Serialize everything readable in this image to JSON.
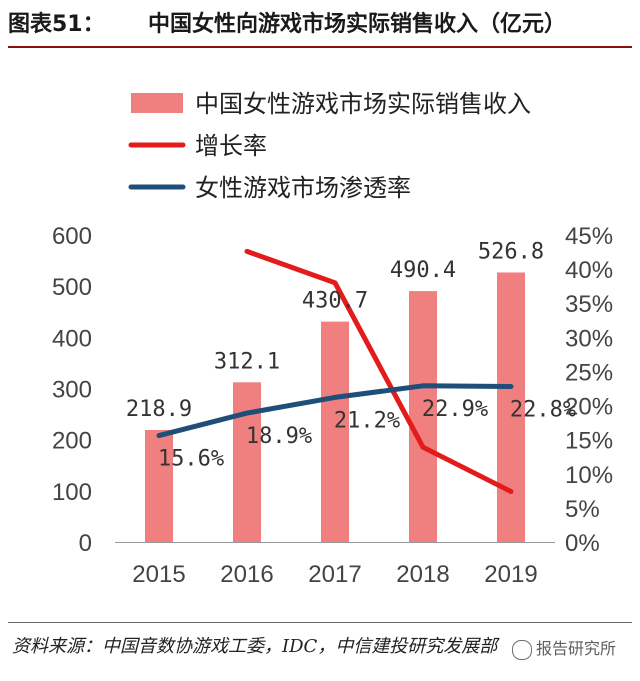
{
  "figure": {
    "label": "图表51：",
    "title": "中国女性向游戏市场实际销售收入（亿元）",
    "source": "资料来源：中国音数协游戏工委，IDC，中信建投研究发展部",
    "watermark": "报告研究所"
  },
  "chart_data": {
    "type": "bar",
    "categories": [
      "2015",
      "2016",
      "2017",
      "2018",
      "2019"
    ],
    "series": [
      {
        "name": "中国女性游戏市场实际销售收入",
        "kind": "bar",
        "axis": "left",
        "color": "#f08080",
        "values": [
          218.9,
          312.1,
          430.7,
          490.4,
          526.8
        ],
        "labels": [
          "218.9",
          "312.1",
          "430.7",
          "490.4",
          "526.8"
        ]
      },
      {
        "name": "增长率",
        "kind": "line",
        "axis": "right",
        "color": "#e31b1b",
        "values": [
          null,
          42.6,
          38.0,
          13.9,
          7.4
        ],
        "labels": []
      },
      {
        "name": "女性游戏市场渗透率",
        "kind": "line",
        "axis": "right",
        "color": "#1f4e79",
        "values": [
          15.6,
          18.9,
          21.2,
          22.9,
          22.8
        ],
        "labels": [
          "15.6%",
          "18.9%",
          "21.2%",
          "22.9%",
          "22.8%"
        ]
      }
    ],
    "left_axis": {
      "ylim": [
        0,
        600
      ],
      "ticks": [
        "0",
        "100",
        "200",
        "300",
        "400",
        "500",
        "600"
      ]
    },
    "right_axis": {
      "ylim": [
        0,
        45
      ],
      "ticks": [
        "0%",
        "5%",
        "10%",
        "15%",
        "20%",
        "25%",
        "30%",
        "35%",
        "40%",
        "45%"
      ]
    },
    "grid": false,
    "legend_position": "top-left"
  }
}
